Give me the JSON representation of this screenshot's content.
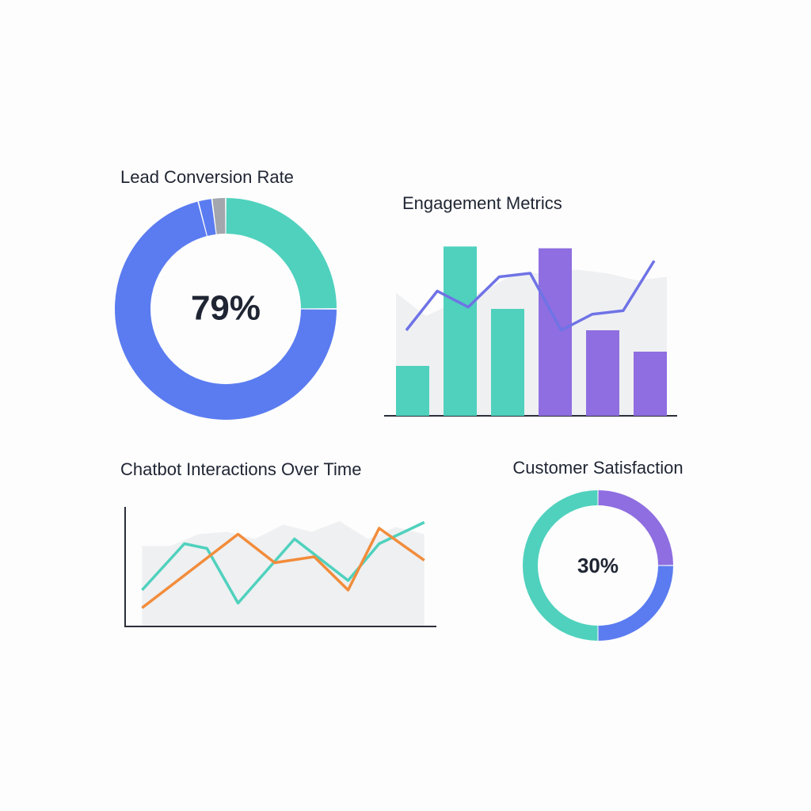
{
  "chart_data": [
    {
      "type": "donut",
      "title": "Lead Conversion Rate",
      "center_label": "79%",
      "values": [
        25,
        71,
        2,
        2
      ],
      "colors": [
        "#4fd1bd",
        "#5b7cf0",
        "#5b7cf0",
        "#a3a6ad"
      ]
    },
    {
      "type": "bar",
      "title": "Engagement Metrics",
      "ylim": [
        0,
        100
      ],
      "categories": [
        null,
        null,
        null,
        null,
        null,
        null
      ],
      "values": [
        28,
        95,
        60,
        94,
        48,
        36
      ],
      "colors": [
        "#4fd1bd",
        "#4fd1bd",
        "#4fd1bd",
        "#8e6ee0",
        "#8e6ee0",
        "#8e6ee0"
      ],
      "overlay_line": {
        "color": "#6f73e6",
        "values": [
          48,
          70,
          61,
          78,
          80,
          48,
          57,
          59,
          87
        ]
      },
      "background_area": {
        "color": "#eff0f2",
        "values": [
          69,
          56,
          64,
          71,
          80,
          80,
          82,
          80,
          76,
          78
        ]
      }
    },
    {
      "type": "line",
      "title": "Chatbot Interactions Over Time",
      "xlim": [
        -6,
        104
      ],
      "ylim": [
        0,
        100
      ],
      "series": [
        {
          "color": "#4fd1bd",
          "x": [
            0,
            15,
            23,
            34,
            54,
            73,
            84,
            100
          ],
          "values": [
            30,
            69,
            65,
            19,
            73,
            38,
            69,
            87
          ]
        },
        {
          "color": "#f28c3b",
          "x": [
            0,
            34,
            47,
            61,
            73,
            84,
            100
          ],
          "values": [
            15,
            77,
            53,
            58,
            30,
            82,
            55
          ]
        }
      ],
      "background_area": {
        "color": "#eef0f2",
        "x": [
          0,
          10,
          20,
          30,
          40,
          50,
          60,
          70,
          80,
          90,
          100
        ],
        "values": [
          67,
          67,
          77,
          79,
          73,
          85,
          79,
          88,
          73,
          83,
          77
        ]
      }
    },
    {
      "type": "donut",
      "title": "Customer Satisfaction",
      "center_label": "30%",
      "values": [
        25,
        25,
        50
      ],
      "colors": [
        "#8e6ee0",
        "#5b7cf0",
        "#4fd1bd"
      ]
    }
  ]
}
